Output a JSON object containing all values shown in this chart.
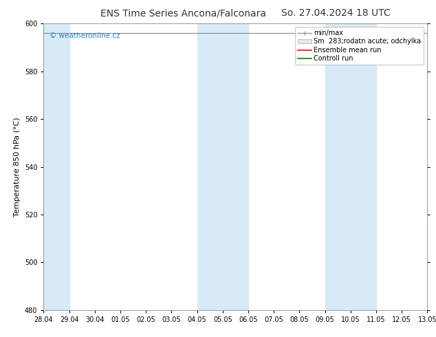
{
  "title": "ENS Time Series Ancona/Falconara",
  "title2": "So. 27.04.2024 18 UTC",
  "ylabel": "Temperature 850 hPa (°C)",
  "xlim_start": 0,
  "xlim_end": 15,
  "ylim": [
    480,
    600
  ],
  "yticks": [
    480,
    500,
    520,
    540,
    560,
    580,
    600
  ],
  "xtick_labels": [
    "28.04",
    "29.04",
    "30.04",
    "01.05",
    "02.05",
    "03.05",
    "04.05",
    "05.05",
    "06.05",
    "07.05",
    "08.05",
    "09.05",
    "10.05",
    "11.05",
    "12.05",
    "13.05"
  ],
  "shaded_bands": [
    {
      "x_start": 0,
      "x_end": 1,
      "color": "#d8eaf6"
    },
    {
      "x_start": 6,
      "x_end": 8,
      "color": "#d8eaf6"
    },
    {
      "x_start": 11,
      "x_end": 13,
      "color": "#d8eaf6"
    }
  ],
  "watermark_text": "© weatheronline.cz",
  "watermark_color": "#1188cc",
  "legend_labels": [
    "min/max",
    "Sm  283;rodatn acute; odchylka",
    "Ensemble mean run",
    "Controll run"
  ],
  "legend_colors_line": [
    "#999999",
    "#bbccdd",
    "red",
    "green"
  ],
  "background_color": "#ffffff",
  "plot_bg_color": "#ffffff",
  "data_value": 596,
  "n_xticks": 16,
  "title_fontsize": 10,
  "ylabel_fontsize": 8,
  "tick_fontsize": 7,
  "legend_fontsize": 7
}
